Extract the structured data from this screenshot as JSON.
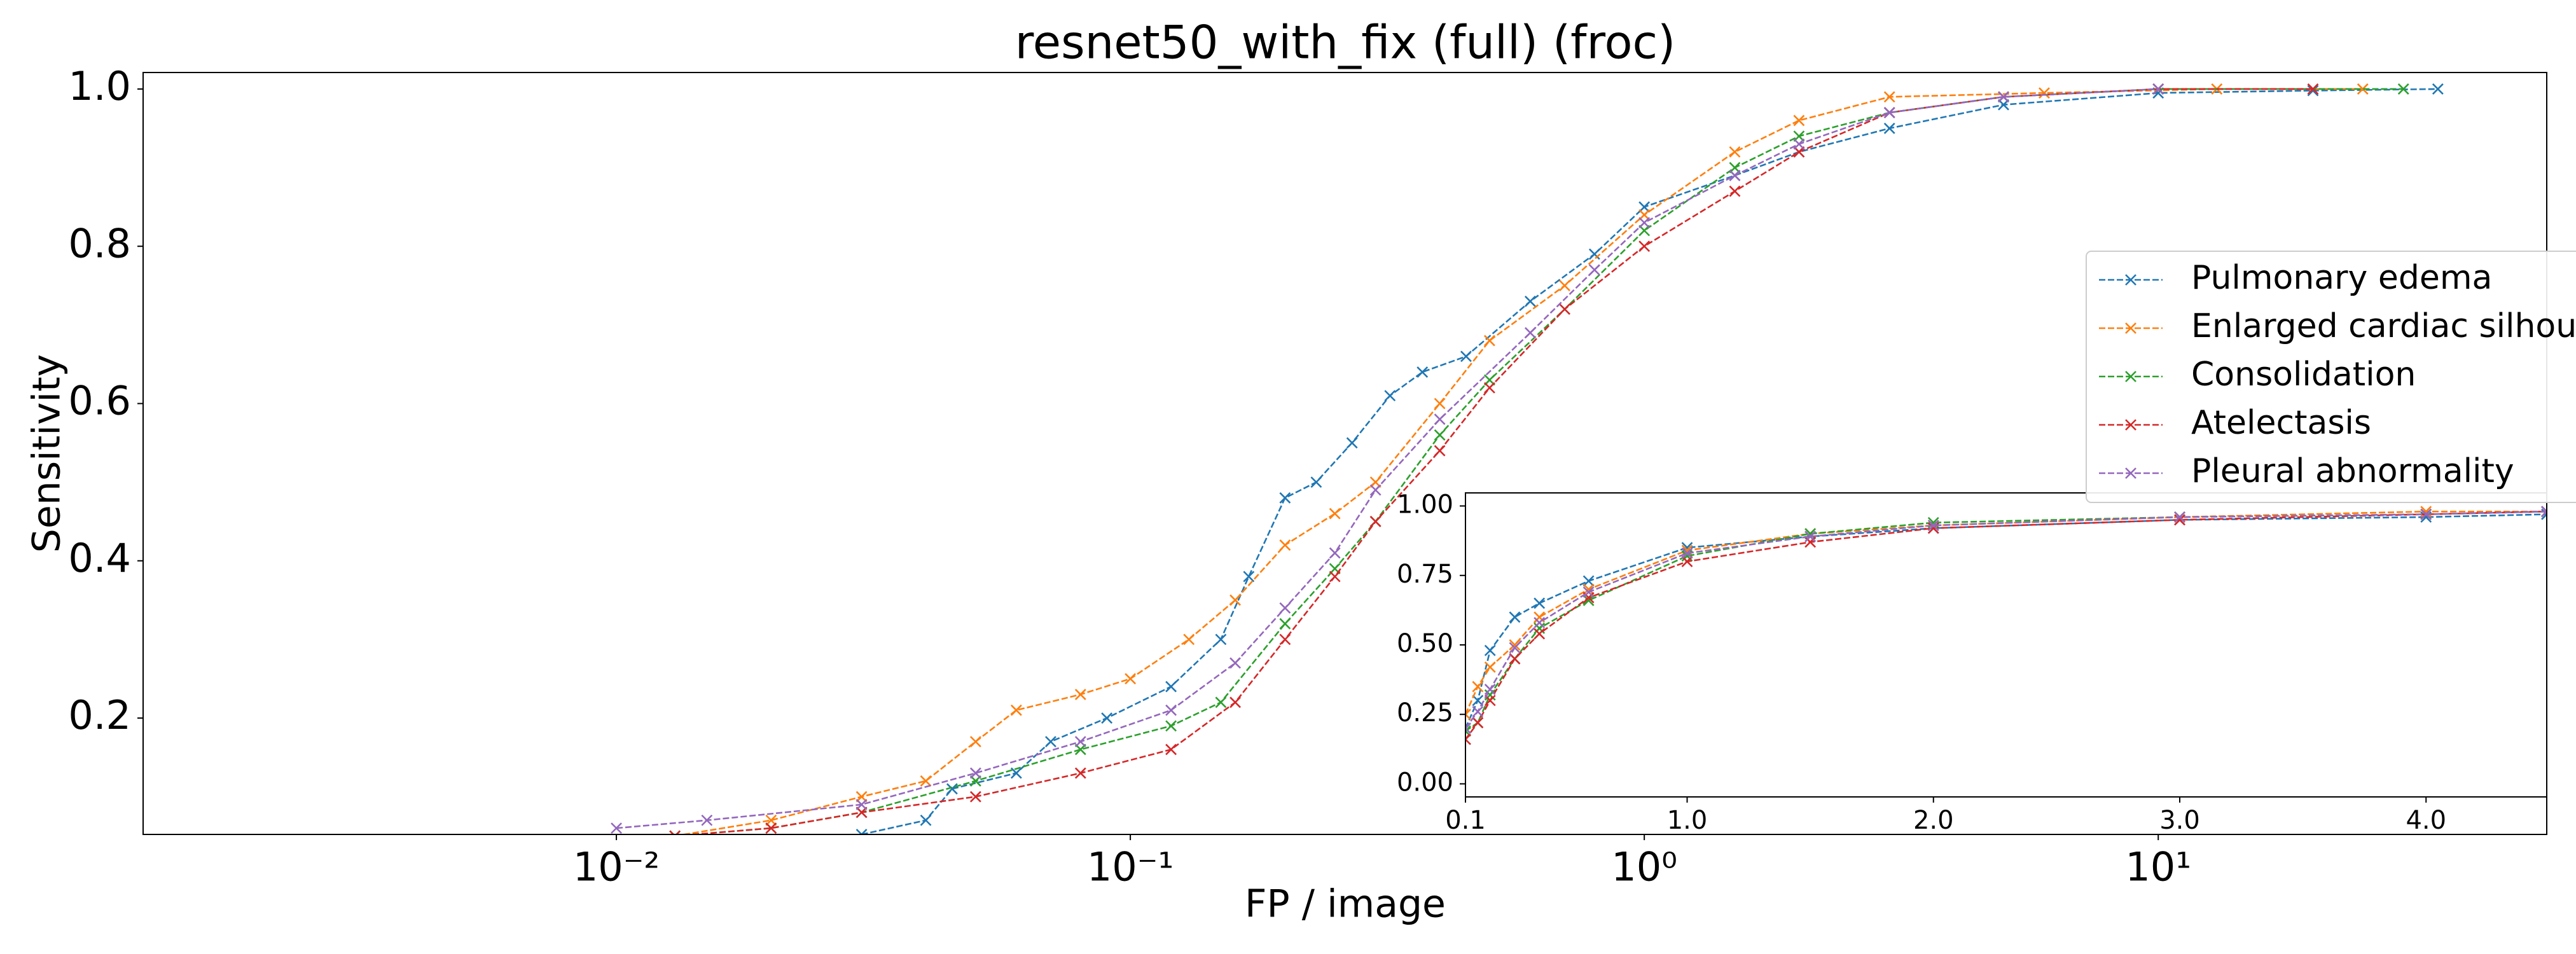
{
  "chart_data": [
    {
      "type": "line",
      "title": "resnet50_with_fix (full) (froc)",
      "x_label": "FP / image",
      "y_label": "Sensitivity",
      "xscale": "log",
      "xlim": [
        0.0012,
        57
      ],
      "ylim": [
        0.052,
        1.021
      ],
      "xticks": [
        {
          "value": 0.01,
          "label": "10⁻²"
        },
        {
          "value": 0.1,
          "label": "10⁻¹"
        },
        {
          "value": 1,
          "label": "10⁰"
        },
        {
          "value": 10,
          "label": "10¹"
        }
      ],
      "yticks": [
        0.2,
        0.4,
        0.6,
        0.8,
        {
          "value": 1,
          "label": "1.0"
        }
      ],
      "legend": "center right",
      "series": [
        {
          "name": "Pulmonary edema",
          "color": "#1f77b4",
          "x": [
            0.03,
            0.04,
            0.045,
            0.06,
            0.07,
            0.09,
            0.12,
            0.15,
            0.17,
            0.2,
            0.23,
            0.27,
            0.32,
            0.37,
            0.45,
            0.6,
            0.8,
            1.0,
            1.5,
            2,
            3,
            5,
            10,
            20,
            35
          ],
          "values": [
            0.052,
            0.07,
            0.11,
            0.13,
            0.17,
            0.2,
            0.24,
            0.3,
            0.38,
            0.48,
            0.5,
            0.55,
            0.61,
            0.64,
            0.66,
            0.73,
            0.79,
            0.85,
            0.89,
            0.92,
            0.95,
            0.98,
            0.995,
            0.998,
            1.0
          ]
        },
        {
          "name": "Enlarged cardiac silhouette",
          "color": "#ff7f0e",
          "x": [
            0.013,
            0.02,
            0.03,
            0.04,
            0.05,
            0.06,
            0.08,
            0.1,
            0.13,
            0.16,
            0.2,
            0.25,
            0.3,
            0.4,
            0.5,
            0.7,
            1,
            1.5,
            2,
            3,
            6,
            13,
            25
          ],
          "values": [
            0.05,
            0.07,
            0.1,
            0.12,
            0.17,
            0.21,
            0.23,
            0.25,
            0.3,
            0.35,
            0.42,
            0.46,
            0.5,
            0.6,
            0.68,
            0.75,
            0.84,
            0.92,
            0.96,
            0.99,
            0.995,
            1.0,
            1.0
          ]
        },
        {
          "name": "Consolidation",
          "color": "#2ca02c",
          "x": [
            0.013,
            0.02,
            0.03,
            0.05,
            0.08,
            0.12,
            0.15,
            0.2,
            0.25,
            0.3,
            0.4,
            0.5,
            0.7,
            1,
            1.5,
            2,
            3,
            5,
            10,
            30
          ],
          "values": [
            0.05,
            0.06,
            0.08,
            0.12,
            0.16,
            0.19,
            0.22,
            0.32,
            0.39,
            0.45,
            0.56,
            0.63,
            0.72,
            0.82,
            0.9,
            0.94,
            0.97,
            0.99,
            1.0,
            1.0
          ]
        },
        {
          "name": "Atelectasis",
          "color": "#d62728",
          "x": [
            0.013,
            0.02,
            0.03,
            0.05,
            0.08,
            0.12,
            0.16,
            0.2,
            0.25,
            0.3,
            0.4,
            0.5,
            0.7,
            1,
            1.5,
            2,
            3,
            5,
            10,
            20
          ],
          "values": [
            0.05,
            0.06,
            0.08,
            0.1,
            0.13,
            0.16,
            0.22,
            0.3,
            0.38,
            0.45,
            0.54,
            0.62,
            0.72,
            0.8,
            0.87,
            0.92,
            0.97,
            0.99,
            1.0,
            1.0
          ]
        },
        {
          "name": "Pleural abnormality",
          "color": "#9467bd",
          "x": [
            0.01,
            0.015,
            0.03,
            0.05,
            0.08,
            0.12,
            0.16,
            0.2,
            0.25,
            0.3,
            0.4,
            0.6,
            0.8,
            1,
            1.5,
            2,
            3,
            5,
            10
          ],
          "values": [
            0.06,
            0.07,
            0.09,
            0.13,
            0.17,
            0.21,
            0.27,
            0.34,
            0.41,
            0.49,
            0.58,
            0.69,
            0.77,
            0.83,
            0.89,
            0.93,
            0.97,
            0.99,
            1.0
          ]
        }
      ]
    },
    {
      "type": "line",
      "xlim": [
        0.1,
        4.49
      ],
      "ylim": [
        -0.047,
        1.047
      ],
      "xticks": [
        0.1,
        {
          "value": 1,
          "label": "1.0"
        },
        {
          "value": 2,
          "label": "2.0"
        },
        {
          "value": 3,
          "label": "3.0"
        },
        {
          "value": 4,
          "label": "4.0"
        }
      ],
      "yticks": [
        {
          "value": 0,
          "label": "0.00"
        },
        {
          "value": 0.25,
          "label": "0.25"
        },
        {
          "value": 0.5,
          "label": "0.50"
        },
        {
          "value": 0.75,
          "label": "0.75"
        },
        {
          "value": 1,
          "label": "1.00"
        }
      ],
      "series": [
        {
          "color": "#1f77b4",
          "x": [
            0.1,
            0.15,
            0.2,
            0.3,
            0.4,
            0.6,
            1,
            1.5,
            2,
            3,
            4,
            4.49
          ],
          "values": [
            0.2,
            0.3,
            0.48,
            0.6,
            0.65,
            0.73,
            0.85,
            0.89,
            0.92,
            0.95,
            0.96,
            0.97
          ]
        },
        {
          "color": "#ff7f0e",
          "x": [
            0.1,
            0.15,
            0.2,
            0.3,
            0.4,
            0.6,
            1,
            1.5,
            2,
            3,
            4,
            4.49
          ],
          "values": [
            0.25,
            0.35,
            0.42,
            0.5,
            0.6,
            0.7,
            0.84,
            0.9,
            0.93,
            0.96,
            0.98,
            0.98
          ]
        },
        {
          "color": "#2ca02c",
          "x": [
            0.1,
            0.15,
            0.2,
            0.3,
            0.4,
            0.6,
            1,
            1.5,
            2,
            3,
            4,
            4.49
          ],
          "values": [
            0.19,
            0.22,
            0.32,
            0.45,
            0.56,
            0.66,
            0.82,
            0.9,
            0.94,
            0.96,
            0.97,
            0.98
          ]
        },
        {
          "color": "#d62728",
          "x": [
            0.1,
            0.15,
            0.2,
            0.3,
            0.4,
            0.6,
            1,
            1.5,
            2,
            3,
            4,
            4.49
          ],
          "values": [
            0.16,
            0.22,
            0.3,
            0.45,
            0.54,
            0.67,
            0.8,
            0.87,
            0.92,
            0.95,
            0.97,
            0.98
          ]
        },
        {
          "color": "#9467bd",
          "x": [
            0.1,
            0.15,
            0.2,
            0.3,
            0.4,
            0.6,
            1,
            1.5,
            2,
            3,
            4,
            4.49
          ],
          "values": [
            0.2,
            0.26,
            0.34,
            0.49,
            0.58,
            0.69,
            0.83,
            0.89,
            0.93,
            0.96,
            0.97,
            0.98
          ]
        }
      ]
    }
  ]
}
